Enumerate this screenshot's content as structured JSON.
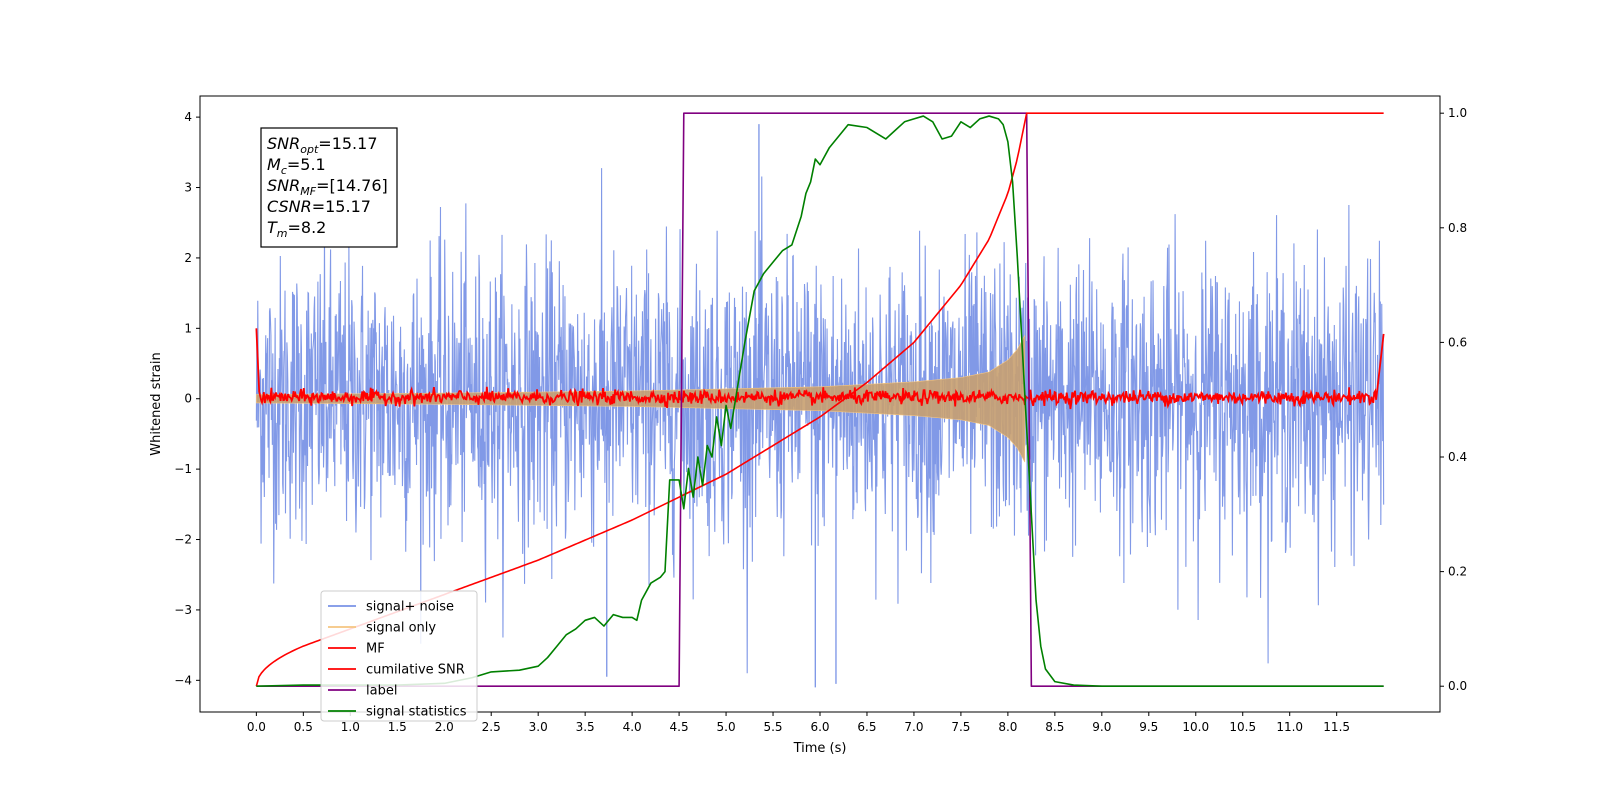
{
  "chart_data": {
    "type": "line",
    "title": "",
    "xlabel": "Time (s)",
    "ylabel": "Whitened strain",
    "ylabel_right": "",
    "xlim": [
      -0.6,
      12.6
    ],
    "ylim_left": [
      -4.45,
      4.3
    ],
    "ylim_right": [
      -0.045,
      1.03
    ],
    "x_ticks": [
      "0.0",
      "0.5",
      "1.0",
      "1.5",
      "2.0",
      "2.5",
      "3.0",
      "3.5",
      "4.0",
      "4.5",
      "5.0",
      "5.5",
      "6.0",
      "6.5",
      "7.0",
      "7.5",
      "8.0",
      "8.5",
      "9.0",
      "9.5",
      "10.0",
      "10.5",
      "11.0",
      "11.5"
    ],
    "y_ticks_left": [
      "4",
      "3",
      "2",
      "1",
      "0",
      "−1",
      "−2",
      "−3",
      "−4"
    ],
    "y_ticks_right": [
      "1.0",
      "0.8",
      "0.6",
      "0.4",
      "0.2",
      "0.0"
    ],
    "info_box": [
      {
        "main": "SNR",
        "sub": "opt",
        "rest": "=15.17"
      },
      {
        "main": "M",
        "sub": "c",
        "rest": "=5.1"
      },
      {
        "main": "SNR",
        "sub": "MF",
        "rest": "=[14.76]"
      },
      {
        "main": "CSNR",
        "sub": "",
        "rest": "=15.17"
      },
      {
        "main": "T",
        "sub": "m",
        "rest": "=8.2"
      }
    ],
    "legend": {
      "position": "lower-left",
      "entries": [
        {
          "label": "signal+ noise",
          "color": "#7a93e6"
        },
        {
          "label": "signal only",
          "color": "#f5c580"
        },
        {
          "label": "MF",
          "color": "#ff0000"
        },
        {
          "label": "cumilative SNR",
          "color": "#ff0000"
        },
        {
          "label": "label",
          "color": "#800080"
        },
        {
          "label": "signal statistics",
          "color": "#008000"
        }
      ]
    },
    "series": [
      {
        "name": "signal+ noise",
        "axis": "left",
        "color": "#7a93e6",
        "t_range": [
          0,
          12
        ],
        "amplitude_range": [
          -4.1,
          3.9
        ],
        "note_peaks": [
          [
            5.35,
            3.9
          ],
          [
            5.95,
            -4.1
          ],
          [
            6.17,
            -4.05
          ],
          [
            3.73,
            -3.95
          ]
        ]
      },
      {
        "name": "signal only",
        "axis": "left",
        "color": "#f5c580",
        "envelope": [
          [
            0.0,
            0.06
          ],
          [
            2.0,
            0.08
          ],
          [
            4.0,
            0.11
          ],
          [
            5.0,
            0.14
          ],
          [
            6.0,
            0.17
          ],
          [
            7.0,
            0.24
          ],
          [
            7.5,
            0.3
          ],
          [
            7.8,
            0.38
          ],
          [
            8.0,
            0.55
          ],
          [
            8.1,
            0.7
          ],
          [
            8.18,
            0.9
          ],
          [
            8.2,
            0.0
          ]
        ]
      },
      {
        "name": "MF",
        "axis": "left",
        "color": "#ff0000",
        "baseline": 0.02,
        "edges": [
          [
            0.0,
            1.0
          ],
          [
            12.0,
            0.92
          ]
        ]
      },
      {
        "name": "cumilative SNR",
        "axis": "right",
        "color": "#ff0000",
        "points": [
          [
            0.0,
            0.0
          ],
          [
            0.5,
            0.07
          ],
          [
            1.0,
            0.1
          ],
          [
            2.0,
            0.16
          ],
          [
            3.0,
            0.22
          ],
          [
            4.0,
            0.29
          ],
          [
            5.0,
            0.37
          ],
          [
            5.5,
            0.42
          ],
          [
            6.0,
            0.47
          ],
          [
            6.5,
            0.53
          ],
          [
            7.0,
            0.6
          ],
          [
            7.5,
            0.7
          ],
          [
            7.8,
            0.78
          ],
          [
            8.0,
            0.86
          ],
          [
            8.1,
            0.92
          ],
          [
            8.15,
            0.96
          ],
          [
            8.2,
            1.0
          ],
          [
            12.0,
            1.0
          ]
        ]
      },
      {
        "name": "label",
        "axis": "right",
        "color": "#800080",
        "points": [
          [
            0.0,
            0.0
          ],
          [
            4.5,
            0.0
          ],
          [
            4.55,
            1.0
          ],
          [
            8.2,
            1.0
          ],
          [
            8.25,
            0.0
          ],
          [
            12.0,
            0.0
          ]
        ]
      },
      {
        "name": "signal statistics",
        "axis": "right",
        "color": "#008000",
        "points": [
          [
            0.0,
            0.0
          ],
          [
            0.5,
            0.002
          ],
          [
            1.0,
            0.002
          ],
          [
            1.5,
            0.002
          ],
          [
            2.0,
            0.005
          ],
          [
            2.3,
            0.015
          ],
          [
            2.5,
            0.025
          ],
          [
            2.8,
            0.028
          ],
          [
            3.0,
            0.035
          ],
          [
            3.1,
            0.05
          ],
          [
            3.2,
            0.07
          ],
          [
            3.3,
            0.09
          ],
          [
            3.4,
            0.1
          ],
          [
            3.5,
            0.115
          ],
          [
            3.6,
            0.12
          ],
          [
            3.7,
            0.105
          ],
          [
            3.8,
            0.125
          ],
          [
            3.9,
            0.12
          ],
          [
            4.0,
            0.12
          ],
          [
            4.05,
            0.115
          ],
          [
            4.1,
            0.15
          ],
          [
            4.2,
            0.18
          ],
          [
            4.3,
            0.19
          ],
          [
            4.35,
            0.2
          ],
          [
            4.4,
            0.36
          ],
          [
            4.5,
            0.36
          ],
          [
            4.55,
            0.31
          ],
          [
            4.6,
            0.38
          ],
          [
            4.65,
            0.33
          ],
          [
            4.7,
            0.4
          ],
          [
            4.75,
            0.35
          ],
          [
            4.8,
            0.42
          ],
          [
            4.85,
            0.4
          ],
          [
            4.9,
            0.47
          ],
          [
            4.95,
            0.42
          ],
          [
            5.0,
            0.49
          ],
          [
            5.05,
            0.45
          ],
          [
            5.1,
            0.5
          ],
          [
            5.15,
            0.55
          ],
          [
            5.2,
            0.6
          ],
          [
            5.3,
            0.69
          ],
          [
            5.4,
            0.72
          ],
          [
            5.5,
            0.74
          ],
          [
            5.6,
            0.76
          ],
          [
            5.7,
            0.77
          ],
          [
            5.8,
            0.82
          ],
          [
            5.85,
            0.86
          ],
          [
            5.9,
            0.88
          ],
          [
            5.95,
            0.92
          ],
          [
            6.0,
            0.91
          ],
          [
            6.1,
            0.94
          ],
          [
            6.2,
            0.96
          ],
          [
            6.3,
            0.98
          ],
          [
            6.5,
            0.975
          ],
          [
            6.7,
            0.955
          ],
          [
            6.9,
            0.985
          ],
          [
            7.0,
            0.99
          ],
          [
            7.1,
            0.995
          ],
          [
            7.2,
            0.985
          ],
          [
            7.3,
            0.955
          ],
          [
            7.4,
            0.96
          ],
          [
            7.5,
            0.985
          ],
          [
            7.6,
            0.975
          ],
          [
            7.7,
            0.99
          ],
          [
            7.8,
            0.995
          ],
          [
            7.9,
            0.99
          ],
          [
            7.95,
            0.98
          ],
          [
            8.0,
            0.95
          ],
          [
            8.05,
            0.88
          ],
          [
            8.1,
            0.75
          ],
          [
            8.15,
            0.6
          ],
          [
            8.2,
            0.45
          ],
          [
            8.25,
            0.3
          ],
          [
            8.3,
            0.15
          ],
          [
            8.35,
            0.07
          ],
          [
            8.4,
            0.03
          ],
          [
            8.5,
            0.008
          ],
          [
            8.7,
            0.002
          ],
          [
            9.0,
            0.0
          ],
          [
            12.0,
            0.0
          ]
        ]
      }
    ]
  }
}
